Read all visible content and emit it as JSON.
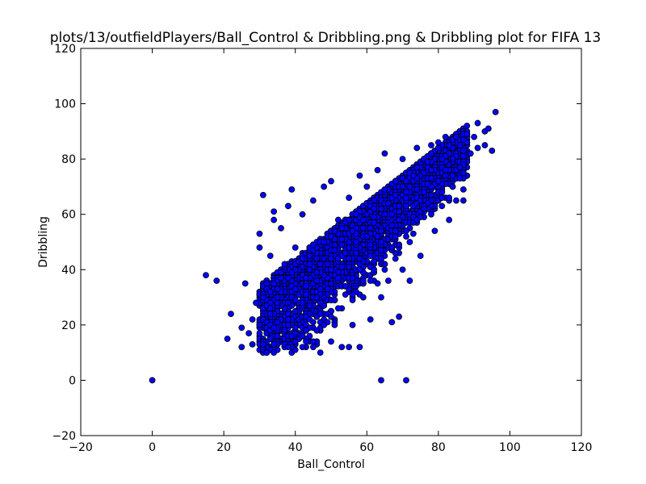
{
  "chart_data": {
    "type": "scatter",
    "title": "plots/13/outfieldPlayers/Ball_Control & Dribbling.png & Dribbling plot for FIFA 13",
    "xlabel": "Ball_Control",
    "ylabel": "Dribbling",
    "xlim": [
      -20,
      120
    ],
    "ylim": [
      -20,
      120
    ],
    "xticks": [
      -20,
      0,
      20,
      40,
      60,
      80,
      100,
      120
    ],
    "yticks": [
      -20,
      0,
      20,
      40,
      60,
      80,
      100,
      120
    ],
    "grid": false,
    "marker_color": "#0000ff",
    "marker_edge_color": "#000000",
    "series": [
      {
        "points": [
          [
            0,
            0
          ],
          [
            64,
            0
          ],
          [
            71,
            0
          ],
          [
            15,
            38
          ],
          [
            18,
            36
          ],
          [
            21,
            15
          ],
          [
            22,
            24
          ],
          [
            25,
            12
          ],
          [
            25,
            19
          ],
          [
            26,
            35
          ],
          [
            27,
            17
          ],
          [
            28,
            22
          ],
          [
            28,
            13
          ],
          [
            29,
            28
          ],
          [
            30,
            20
          ],
          [
            30,
            48
          ],
          [
            30,
            53
          ],
          [
            31,
            13
          ],
          [
            31,
            67
          ],
          [
            32,
            27
          ],
          [
            32,
            35
          ],
          [
            33,
            26
          ],
          [
            33,
            45
          ],
          [
            34,
            10
          ],
          [
            34,
            58
          ],
          [
            34,
            61
          ],
          [
            35,
            16
          ],
          [
            35,
            30
          ],
          [
            36,
            55
          ],
          [
            37,
            42
          ],
          [
            38,
            12
          ],
          [
            38,
            22
          ],
          [
            38,
            63
          ],
          [
            39,
            69
          ],
          [
            40,
            14
          ],
          [
            40,
            48
          ],
          [
            42,
            12
          ],
          [
            42,
            28
          ],
          [
            42,
            60
          ],
          [
            44,
            22
          ],
          [
            44,
            40
          ],
          [
            45,
            12
          ],
          [
            45,
            65
          ],
          [
            46,
            30
          ],
          [
            47,
            10
          ],
          [
            48,
            20
          ],
          [
            48,
            50
          ],
          [
            48,
            70
          ],
          [
            50,
            14
          ],
          [
            50,
            40
          ],
          [
            50,
            72
          ],
          [
            52,
            26
          ],
          [
            52,
            58
          ],
          [
            53,
            12
          ],
          [
            54,
            34
          ],
          [
            55,
            12
          ],
          [
            55,
            48
          ],
          [
            55,
            66
          ],
          [
            56,
            20
          ],
          [
            57,
            60
          ],
          [
            58,
            12
          ],
          [
            58,
            44
          ],
          [
            58,
            74
          ],
          [
            59,
            30
          ],
          [
            60,
            52
          ],
          [
            60,
            70
          ],
          [
            61,
            22
          ],
          [
            62,
            40
          ],
          [
            62,
            62
          ],
          [
            63,
            76
          ],
          [
            64,
            30
          ],
          [
            64,
            54
          ],
          [
            65,
            82
          ],
          [
            66,
            36
          ],
          [
            66,
            64
          ],
          [
            67,
            21
          ],
          [
            67,
            48
          ],
          [
            68,
            72
          ],
          [
            69,
            23
          ],
          [
            69,
            58
          ],
          [
            70,
            40
          ],
          [
            70,
            80
          ],
          [
            71,
            66
          ],
          [
            72,
            36
          ],
          [
            72,
            50
          ],
          [
            73,
            74
          ],
          [
            74,
            58
          ],
          [
            74,
            84
          ],
          [
            75,
            45
          ],
          [
            76,
            68
          ],
          [
            77,
            79
          ],
          [
            78,
            60
          ],
          [
            78,
            85
          ],
          [
            79,
            54
          ],
          [
            80,
            72
          ],
          [
            80,
            86
          ],
          [
            81,
            63
          ],
          [
            82,
            76
          ],
          [
            82,
            88
          ],
          [
            83,
            58
          ],
          [
            84,
            80
          ],
          [
            85,
            65
          ],
          [
            85,
            88
          ],
          [
            86,
            73
          ],
          [
            87,
            83
          ],
          [
            87,
            65
          ],
          [
            88,
            89
          ],
          [
            89,
            82
          ],
          [
            90,
            88
          ],
          [
            91,
            84
          ],
          [
            91,
            93
          ],
          [
            93,
            85
          ],
          [
            93,
            90
          ],
          [
            94,
            91
          ],
          [
            95,
            83
          ],
          [
            96,
            97
          ]
        ]
      }
    ]
  }
}
